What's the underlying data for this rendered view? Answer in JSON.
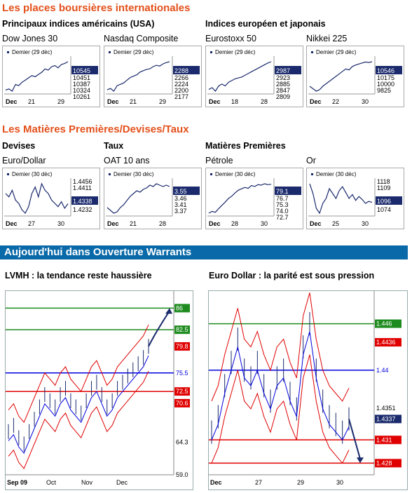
{
  "section1": {
    "title": "Les places boursières internationales",
    "group_left": "Principaux indices américains (USA)",
    "group_right": "Indices européen et japonais"
  },
  "section2": {
    "title": "Les Matières Premières/Devises/Taux",
    "group_devises": "Devises",
    "group_taux": "Taux",
    "group_mp": "Matières Premières"
  },
  "minis": [
    {
      "label": "Dow Jones 30",
      "legend": "Demier (29 déc)",
      "current": "10545",
      "ticks": [
        "10451",
        "10387",
        "10324",
        "10261"
      ],
      "xticks": [
        "Dec",
        "21",
        "29"
      ],
      "chart_data": {
        "type": "line",
        "title": "Dow Jones 30",
        "y": [
          10290,
          10300,
          10280,
          10340,
          10330,
          10360,
          10380,
          10400,
          10420,
          10410,
          10430,
          10450,
          10480,
          10470,
          10500,
          10510,
          10490,
          10520,
          10530,
          10545
        ]
      }
    },
    {
      "label": "Nasdaq Composite",
      "legend": "Demier (29 déc)",
      "current": "2288",
      "ticks": [
        "2266",
        "2224",
        "2200",
        "2177"
      ],
      "xticks": [
        "Dec",
        "21",
        "29"
      ],
      "chart_data": {
        "type": "line",
        "title": "Nasdaq Composite",
        "y": [
          2185,
          2190,
          2180,
          2200,
          2205,
          2210,
          2220,
          2230,
          2235,
          2240,
          2250,
          2255,
          2260,
          2262,
          2270,
          2275,
          2272,
          2280,
          2285,
          2288
        ]
      }
    },
    {
      "label": "Eurostoxx 50",
      "legend": "Demier (29 déc)",
      "current": "2987",
      "ticks": [
        "2923",
        "2885",
        "2847",
        "2809"
      ],
      "xticks": [
        "Dec",
        "18",
        "28"
      ],
      "chart_data": {
        "type": "line",
        "title": "Eurostoxx 50",
        "y": [
          2830,
          2840,
          2820,
          2850,
          2860,
          2850,
          2870,
          2880,
          2890,
          2895,
          2900,
          2910,
          2920,
          2930,
          2940,
          2950,
          2960,
          2970,
          2980,
          2987
        ]
      }
    },
    {
      "label": "Nikkei 225",
      "legend": "Demier (29 déc)",
      "current": "10546",
      "ticks": [
        "10175",
        "10000",
        "9825"
      ],
      "xticks": [
        "Dec",
        "22",
        "30"
      ],
      "chart_data": {
        "type": "line",
        "title": "Nikkei 225",
        "y": [
          10050,
          10000,
          9950,
          9980,
          10050,
          10100,
          10150,
          10200,
          10250,
          10300,
          10350,
          10400,
          10380,
          10450,
          10480,
          10500,
          10520,
          10540,
          10530,
          10546
        ]
      }
    },
    {
      "label": "Euro/Dollar",
      "legend": "Demier (30 déc)",
      "current": "1.4338",
      "ticks": [
        "1.4456",
        "1.4411",
        "1.4232"
      ],
      "xticks": [
        "Dec",
        "27",
        "30"
      ],
      "chart_data": {
        "type": "line",
        "title": "Euro/Dollar",
        "y": [
          1.44,
          1.438,
          1.442,
          1.436,
          1.434,
          1.43,
          1.428,
          1.432,
          1.44,
          1.444,
          1.438,
          1.446,
          1.442,
          1.44,
          1.436,
          1.434,
          1.432,
          1.435,
          1.431,
          1.4338
        ]
      }
    },
    {
      "label": "OAT 10 ans",
      "legend": "Demier (30 déc)",
      "current": "3.55",
      "ticks": [
        "3.46",
        "3.41",
        "3.37"
      ],
      "xticks": [
        "Dec",
        "21",
        "28"
      ],
      "chart_data": {
        "type": "line",
        "title": "OAT 10 ans",
        "y": [
          3.4,
          3.38,
          3.36,
          3.37,
          3.4,
          3.42,
          3.45,
          3.48,
          3.5,
          3.52,
          3.51,
          3.53,
          3.54,
          3.56,
          3.55,
          3.57,
          3.56,
          3.55,
          3.56,
          3.55
        ]
      }
    },
    {
      "label": "Pétrole",
      "legend": "Demier (30 déc)",
      "current": "79.1",
      "ticks": [
        "76.7",
        "75.3",
        "74.0",
        "72.7"
      ],
      "xticks": [
        "Dec",
        "28",
        "30"
      ],
      "chart_data": {
        "type": "line",
        "title": "Pétrole",
        "y": [
          72.8,
          73.2,
          73.0,
          73.8,
          74.5,
          75.2,
          76.0,
          76.5,
          77.2,
          77.8,
          78.1,
          78.4,
          78.2,
          78.8,
          78.6,
          79.0,
          78.9,
          79.2,
          79.0,
          79.1
        ]
      }
    },
    {
      "label": "Or",
      "legend": "Demier (30 déc)",
      "current": "1096",
      "ticks": [
        "1118",
        "1109",
        "1074"
      ],
      "xticks": [
        "Dec",
        "25",
        "30"
      ],
      "chart_data": {
        "type": "line",
        "title": "Or",
        "y": [
          1115,
          1105,
          1090,
          1085,
          1095,
          1100,
          1110,
          1105,
          1100,
          1108,
          1112,
          1106,
          1100,
          1104,
          1098,
          1102,
          1099,
          1095,
          1097,
          1096
        ]
      }
    }
  ],
  "banner": {
    "title": "Aujourd'hui dans Ouverture Warrants"
  },
  "lvmh": {
    "title": "LVMH : la tendance reste haussière",
    "xticks": [
      "Sep 09",
      "Oct",
      "Nov",
      "Dec"
    ],
    "yticks": [
      "86",
      "82.5",
      "79.8",
      "75.5",
      "72.5",
      "70.6",
      "64.3",
      "59.0"
    ],
    "chart_data": {
      "type": "line",
      "title": "LVMH : la tendance reste haussière",
      "levels": {
        "resistance": [
          86,
          82.5
        ],
        "pivot": 75.5,
        "support": [
          72.5
        ],
        "current": 79.8,
        "lower_band": 70.6
      },
      "y": [
        66,
        67,
        65,
        64,
        66,
        68,
        70,
        72,
        71,
        70,
        72,
        73,
        71,
        70,
        69,
        71,
        73,
        74,
        72,
        70,
        71,
        73,
        74,
        75,
        76,
        77,
        78,
        79.8
      ]
    }
  },
  "eurodollar": {
    "title": "Euro Dollar : la parité est sous pression",
    "xticks": [
      "Dec",
      "27",
      "29",
      "30"
    ],
    "yticks": [
      "1.446",
      "1.4436",
      "1.44",
      "1.4351",
      "1.4337",
      "1.431",
      "1.428"
    ],
    "chart_data": {
      "type": "line",
      "title": "Euro Dollar : la parité est sous pression",
      "levels": {
        "resistance": [
          1.446,
          1.4436
        ],
        "pivot": 1.44,
        "support": [
          1.431,
          1.428
        ],
        "current": 1.4337
      },
      "y": [
        1.432,
        1.434,
        1.438,
        1.441,
        1.444,
        1.44,
        1.439,
        1.441,
        1.438,
        1.436,
        1.439,
        1.44,
        1.437,
        1.435,
        1.443,
        1.446,
        1.44,
        1.436,
        1.434,
        1.433,
        1.432,
        1.4337
      ]
    }
  },
  "colors": {
    "accent": "#e3501b",
    "banner": "#0a69a8",
    "value_tag": "#1a2a6c",
    "green": "#1e8b1e",
    "red": "#e00000",
    "blue": "#0000dd"
  }
}
